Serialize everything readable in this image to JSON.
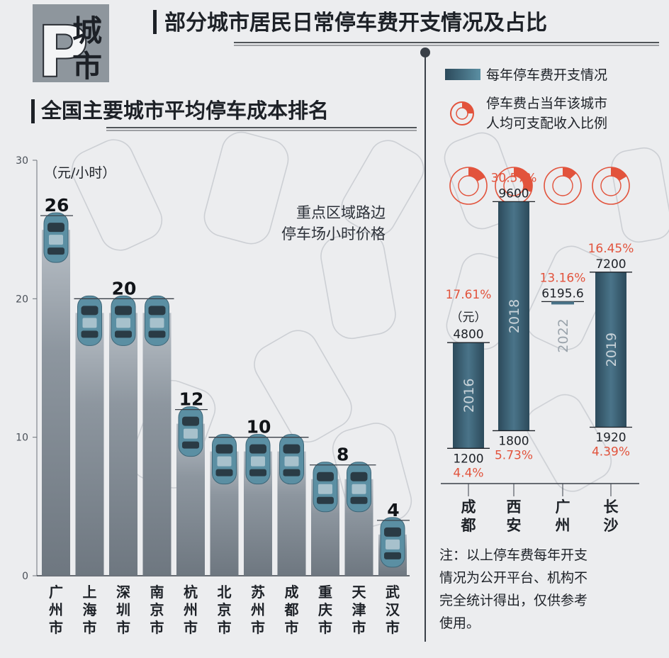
{
  "logo": {
    "letter": "P",
    "line1": "城",
    "line2": "市"
  },
  "header": {
    "title": "部分城市居民日常停车费开支情况及占比"
  },
  "left_title": "全国主要城市平均停车成本排名",
  "legend": {
    "bar_label": "每年停车费开支情况",
    "ring_label_line1": "停车费占当年该城市",
    "ring_label_line2": "人均可支配收入比例"
  },
  "note": {
    "line1": "注：以上停车费每年开支",
    "line2": "情况为公开平台、机构不",
    "line3": "完全统计得出，仅供参考",
    "line4": "使用。"
  },
  "colors": {
    "accent_red": "#e2533c",
    "bar_blue_top": "#3f6a80",
    "bar_blue_bottom": "#2a4656",
    "column_grey": "#9aa3ab",
    "car_blue": "#5b8fa3"
  },
  "chart_data": [
    {
      "type": "bar",
      "title": "全国主要城市平均停车成本排名",
      "unit_label": "（元/小时）",
      "annotation_line1": "重点区域路边",
      "annotation_line2": "停车场小时价格",
      "yticks": [
        0,
        10,
        20,
        30
      ],
      "ylim": [
        0,
        30
      ],
      "categories": [
        "广州市",
        "上海市",
        "深圳市",
        "南京市",
        "杭州市",
        "北京市",
        "苏州市",
        "成都市",
        "重庆市",
        "天津市",
        "武汉市"
      ],
      "values": [
        26,
        20,
        20,
        20,
        12,
        10,
        10,
        10,
        8,
        8,
        4
      ],
      "group_labels": [
        {
          "text": "26",
          "value": 26,
          "from": 0,
          "to": 0
        },
        {
          "text": "20",
          "value": 20,
          "from": 1,
          "to": 3
        },
        {
          "text": "12",
          "value": 12,
          "from": 4,
          "to": 4
        },
        {
          "text": "10",
          "value": 10,
          "from": 5,
          "to": 7
        },
        {
          "text": "8",
          "value": 8,
          "from": 8,
          "to": 9
        },
        {
          "text": "4",
          "value": 4,
          "from": 10,
          "to": 10
        }
      ]
    },
    {
      "type": "range-bar",
      "title": "部分城市居民日常停车费开支情况及占比",
      "unit_label": "（元）",
      "categories": [
        "成都",
        "西安",
        "广州",
        "长沙"
      ],
      "years": [
        "2016",
        "2018",
        "2022",
        "2019"
      ],
      "low": [
        1200,
        1800,
        null,
        1920
      ],
      "high": [
        4800,
        9600,
        6195.6,
        7200
      ],
      "low_pct": [
        "4.4%",
        "5.73%",
        null,
        "4.39%"
      ],
      "high_pct": [
        "17.61%",
        "30.57%",
        "13.16%",
        "16.45%"
      ],
      "ring_share": [
        0.1761,
        0.3057,
        0.1316,
        0.1645
      ],
      "ylim": [
        0,
        12000
      ]
    }
  ]
}
